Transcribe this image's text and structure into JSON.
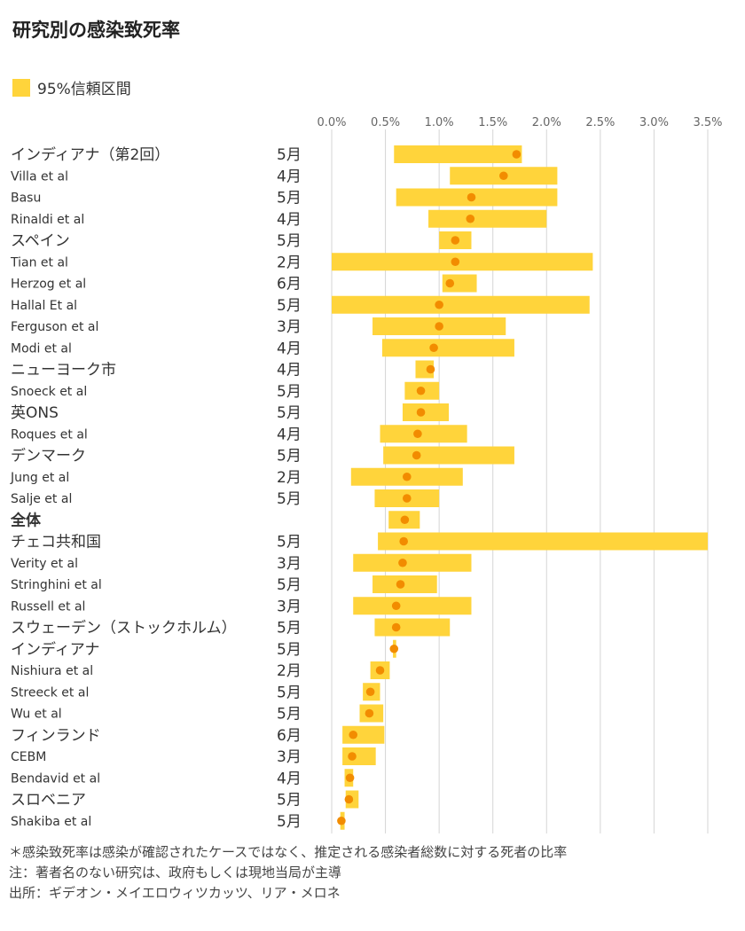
{
  "chart_data": {
    "type": "range",
    "title": "研究別の感染致死率",
    "legend": [
      "95%信頼区間"
    ],
    "x_ticks": [
      "0.0%",
      "0.5%",
      "1.0%",
      "1.5%",
      "2.0%",
      "2.5%",
      "3.0%",
      "3.5%"
    ],
    "xlim": [
      0,
      3.5
    ],
    "grid": "vertical",
    "colors": {
      "interval": "#FFD43B",
      "point": "#F28C00",
      "grid": "#d6d6d6"
    },
    "rows": [
      {
        "study": "インディアナ（第2回）",
        "month": "5月",
        "low": 0.58,
        "high": 1.77,
        "ifr": 1.72
      },
      {
        "study": "Villa et al",
        "month": "4月",
        "low": 1.1,
        "high": 2.1,
        "ifr": 1.6
      },
      {
        "study": "Basu",
        "month": "5月",
        "low": 0.6,
        "high": 2.1,
        "ifr": 1.3
      },
      {
        "study": "Rinaldi et al",
        "month": "4月",
        "low": 0.9,
        "high": 2.0,
        "ifr": 1.29
      },
      {
        "study": "スペイン",
        "month": "5月",
        "low": 1.0,
        "high": 1.3,
        "ifr": 1.15
      },
      {
        "study": "Tian et al",
        "month": "2月",
        "low": 0.0,
        "high": 2.43,
        "ifr": 1.15
      },
      {
        "study": "Herzog et al",
        "month": "6月",
        "low": 1.03,
        "high": 1.35,
        "ifr": 1.1
      },
      {
        "study": "Hallal Et al",
        "month": "5月",
        "low": 0.0,
        "high": 2.4,
        "ifr": 1.0
      },
      {
        "study": "Ferguson et al",
        "month": "3月",
        "low": 0.38,
        "high": 1.62,
        "ifr": 1.0
      },
      {
        "study": "Modi et al",
        "month": "4月",
        "low": 0.47,
        "high": 1.7,
        "ifr": 0.95
      },
      {
        "study": "ニューヨーク市",
        "month": "4月",
        "low": 0.78,
        "high": 0.95,
        "ifr": 0.92
      },
      {
        "study": "Snoeck et al",
        "month": "5月",
        "low": 0.68,
        "high": 1.0,
        "ifr": 0.83
      },
      {
        "study": "英ONS",
        "month": "5月",
        "low": 0.66,
        "high": 1.09,
        "ifr": 0.83
      },
      {
        "study": "Roques et al",
        "month": "4月",
        "low": 0.45,
        "high": 1.26,
        "ifr": 0.8
      },
      {
        "study": "デンマーク",
        "month": "5月",
        "low": 0.48,
        "high": 1.7,
        "ifr": 0.79
      },
      {
        "study": "Jung et al",
        "month": "2月",
        "low": 0.18,
        "high": 1.22,
        "ifr": 0.7
      },
      {
        "study": "Salje et al",
        "month": "5月",
        "low": 0.4,
        "high": 1.0,
        "ifr": 0.7
      },
      {
        "study": "全体",
        "month": "",
        "low": 0.53,
        "high": 0.82,
        "ifr": 0.68,
        "bold": true
      },
      {
        "study": "チェコ共和国",
        "month": "5月",
        "low": 0.43,
        "high": 3.5,
        "ifr": 0.67
      },
      {
        "study": "Verity et al",
        "month": "3月",
        "low": 0.2,
        "high": 1.3,
        "ifr": 0.66
      },
      {
        "study": "Stringhini et al",
        "month": "5月",
        "low": 0.38,
        "high": 0.98,
        "ifr": 0.64
      },
      {
        "study": "Russell et al",
        "month": "3月",
        "low": 0.2,
        "high": 1.3,
        "ifr": 0.6
      },
      {
        "study": "スウェーデン（ストックホルム）",
        "month": "5月",
        "low": 0.4,
        "high": 1.1,
        "ifr": 0.6
      },
      {
        "study": "インディアナ",
        "month": "5月",
        "low": 0.57,
        "high": 0.6,
        "ifr": 0.58
      },
      {
        "study": "Nishiura et al",
        "month": "2月",
        "low": 0.36,
        "high": 0.54,
        "ifr": 0.45
      },
      {
        "study": "Streeck et al",
        "month": "5月",
        "low": 0.29,
        "high": 0.45,
        "ifr": 0.36
      },
      {
        "study": "Wu et al",
        "month": "5月",
        "low": 0.26,
        "high": 0.48,
        "ifr": 0.35
      },
      {
        "study": "フィンランド",
        "month": "6月",
        "low": 0.1,
        "high": 0.49,
        "ifr": 0.2
      },
      {
        "study": "CEBM",
        "month": "3月",
        "low": 0.1,
        "high": 0.41,
        "ifr": 0.19
      },
      {
        "study": "Bendavid et al",
        "month": "4月",
        "low": 0.12,
        "high": 0.2,
        "ifr": 0.17
      },
      {
        "study": "スロベニア",
        "month": "5月",
        "low": 0.13,
        "high": 0.25,
        "ifr": 0.16
      },
      {
        "study": "Shakiba et al",
        "month": "5月",
        "low": 0.08,
        "high": 0.12,
        "ifr": 0.09
      }
    ]
  },
  "notes": {
    "line1": "＊感染致死率は感染が確認されたケースではなく、推定される感染者総数に対する死者の比率",
    "line2": "注：著者名のない研究は、政府もしくは現地当局が主導",
    "line3": "出所：ギデオン・メイエロウィツカッツ、リア・メロネ"
  }
}
